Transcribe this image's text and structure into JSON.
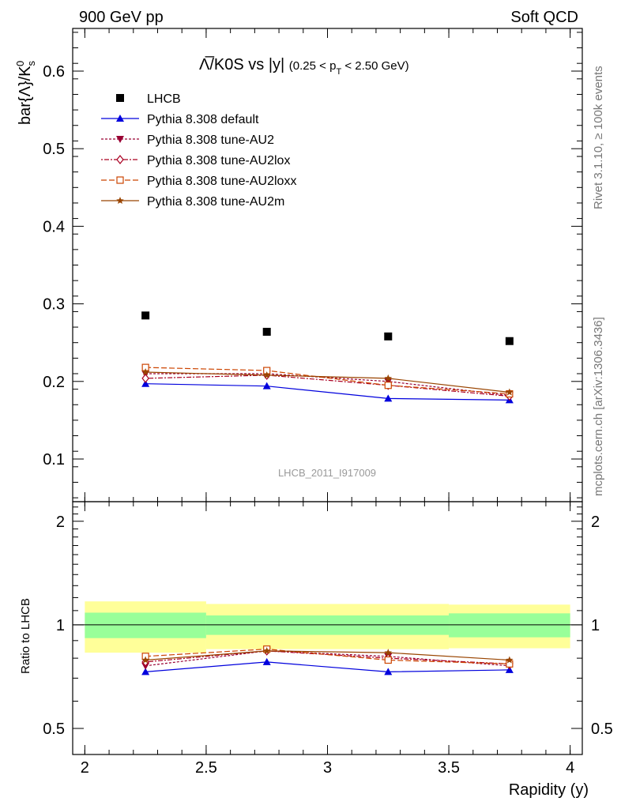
{
  "header": {
    "left": "900 GeV pp",
    "right": "Soft QCD"
  },
  "side_labels": {
    "rivet": "Rivet 3.1.10, ≥ 100k events",
    "mcplots": "mcplots.cern.ch [arXiv:1306.3436]"
  },
  "chart_data": {
    "type": "scatter",
    "title": {
      "main": "Λ̅/K0S vs |y|",
      "sub_prefix": "(0.25 < p",
      "sub_subscript": "T",
      "sub_suffix": " < 2.50 GeV)"
    },
    "analysis_label": "LHCB_2011_I917009",
    "xlabel": "Rapidity (y)",
    "ylabel_main": "bar{Λ}/K",
    "ylabel_sup": "0",
    "ylabel_sub": "s",
    "ratio_ylabel": "Ratio to LHCB",
    "xlim": [
      1.95,
      4.05
    ],
    "ylim": [
      0.045,
      0.655
    ],
    "ratio_ylim": [
      0.42,
      2.28
    ],
    "x_ticks": [
      2,
      2.5,
      3,
      3.5,
      4
    ],
    "x_tick_labels": [
      "2",
      "2.5",
      "3",
      "3.5",
      "4"
    ],
    "y_ticks": [
      0.1,
      0.2,
      0.3,
      0.4,
      0.5,
      0.6
    ],
    "y_tick_labels": [
      "0.1",
      "0.2",
      "0.3",
      "0.4",
      "0.5",
      "0.6"
    ],
    "ratio_y_ticks": [
      0.5,
      1,
      2
    ],
    "ratio_y_tick_labels": [
      "0.5",
      "1",
      "2"
    ],
    "x": [
      2.25,
      2.75,
      3.25,
      3.75
    ],
    "bins": [
      [
        2.0,
        2.5
      ],
      [
        2.5,
        3.0
      ],
      [
        3.0,
        3.5
      ],
      [
        3.5,
        4.0
      ]
    ],
    "legend_placement": "top-left",
    "data": {
      "name": "LHCB",
      "values": [
        0.285,
        0.264,
        0.258,
        0.252
      ],
      "err_stat_rel": [
        0.085,
        0.065,
        0.065,
        0.08
      ],
      "err_total_rel": [
        0.17,
        0.15,
        0.15,
        0.145
      ]
    },
    "series": [
      {
        "name": "Pythia 8.308 default",
        "color": "#0000dd",
        "marker": "triangle-up",
        "dash": "",
        "values": [
          0.197,
          0.194,
          0.178,
          0.176
        ],
        "ratio": [
          0.73,
          0.78,
          0.73,
          0.74
        ]
      },
      {
        "name": "Pythia 8.308 tune-AU2",
        "color": "#990033",
        "marker": "triangle-down",
        "dash": "3,2",
        "values": [
          0.21,
          0.21,
          0.2,
          0.182
        ],
        "ratio": [
          0.76,
          0.84,
          0.81,
          0.76
        ]
      },
      {
        "name": "Pythia 8.308 tune-AU2lox",
        "color": "#aa0022",
        "marker": "diamond-open",
        "dash": "2,2,6,2",
        "values": [
          0.204,
          0.208,
          0.195,
          0.181
        ],
        "ratio": [
          0.78,
          0.84,
          0.8,
          0.77
        ]
      },
      {
        "name": "Pythia 8.308 tune-AU2loxx",
        "color": "#cc4400",
        "marker": "square-open",
        "dash": "7,3",
        "values": [
          0.218,
          0.214,
          0.195,
          0.184
        ],
        "ratio": [
          0.81,
          0.85,
          0.79,
          0.77
        ]
      },
      {
        "name": "Pythia 8.308 tune-AU2m",
        "color": "#994400",
        "marker": "star",
        "dash": "",
        "values": [
          0.212,
          0.208,
          0.204,
          0.186
        ],
        "ratio": [
          0.79,
          0.84,
          0.83,
          0.79
        ]
      }
    ],
    "colors": {
      "band_outer": "#ffff99",
      "band_inner": "#99ff99",
      "data_marker": "#000000"
    }
  }
}
